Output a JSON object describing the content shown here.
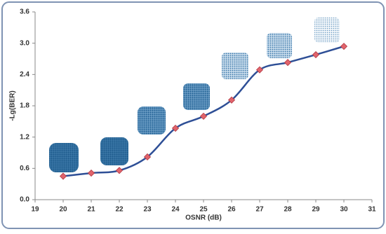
{
  "chart_data": {
    "type": "line",
    "x_label": "OSNR (dB)",
    "y_label": "-Lg(BER)",
    "x": [
      20,
      21,
      22,
      23,
      24,
      25,
      26,
      27,
      28,
      29,
      30
    ],
    "series": [
      {
        "name": null,
        "color": "#2e4f96",
        "marker_color": "#e0646c",
        "values": [
          0.45,
          0.51,
          0.56,
          0.82,
          1.37,
          1.6,
          1.91,
          2.49,
          2.63,
          2.78,
          2.94
        ]
      }
    ],
    "xlim": [
      19,
      31
    ],
    "xticks": [
      19,
      20,
      21,
      22,
      23,
      24,
      25,
      26,
      27,
      28,
      29,
      30,
      31
    ],
    "ylim": [
      0,
      3.6
    ],
    "yticks": [
      {
        "value": 0,
        "label": "0.0"
      },
      0.6,
      1.2,
      1.8,
      2.4,
      {
        "value": 3,
        "label": "3.0"
      },
      3.6
    ]
  }
}
